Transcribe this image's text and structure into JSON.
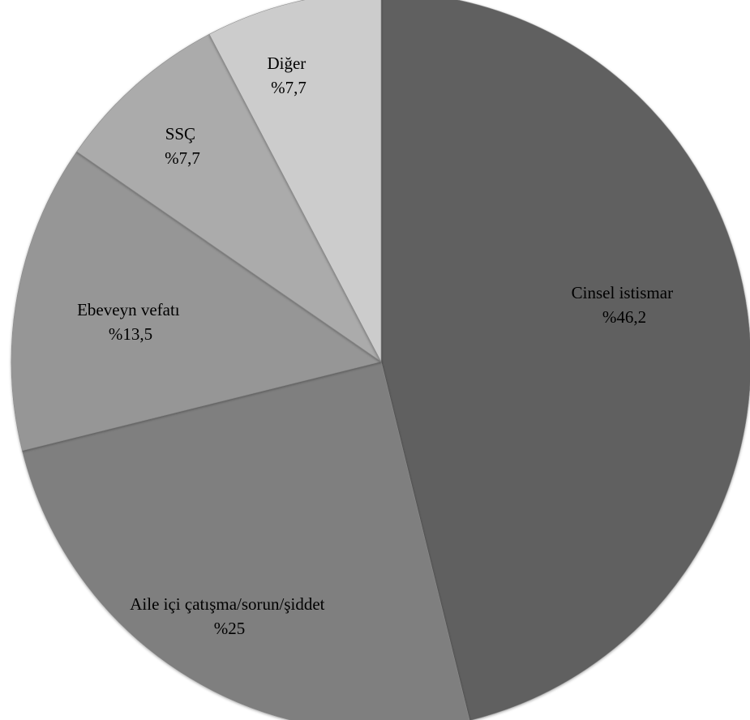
{
  "chart_data": {
    "type": "pie",
    "title": "",
    "slices": [
      {
        "label": "Cinsel istismar",
        "value_text": "%46,2",
        "value": 46.2,
        "color": "#606060"
      },
      {
        "label": "Aile içi çatışma/sorun/şiddet",
        "value_text": "%25",
        "value": 25,
        "color": "#7f7f7f"
      },
      {
        "label": "Ebeveyn vefatı",
        "value_text": "%13,5",
        "value": 13.5,
        "color": "#969696"
      },
      {
        "label": "SSÇ",
        "value_text": "%7,7",
        "value": 7.7,
        "color": "#ababab"
      },
      {
        "label": "Diğer",
        "value_text": "%7,7",
        "value": 7.7,
        "color": "#cccccc"
      }
    ]
  }
}
